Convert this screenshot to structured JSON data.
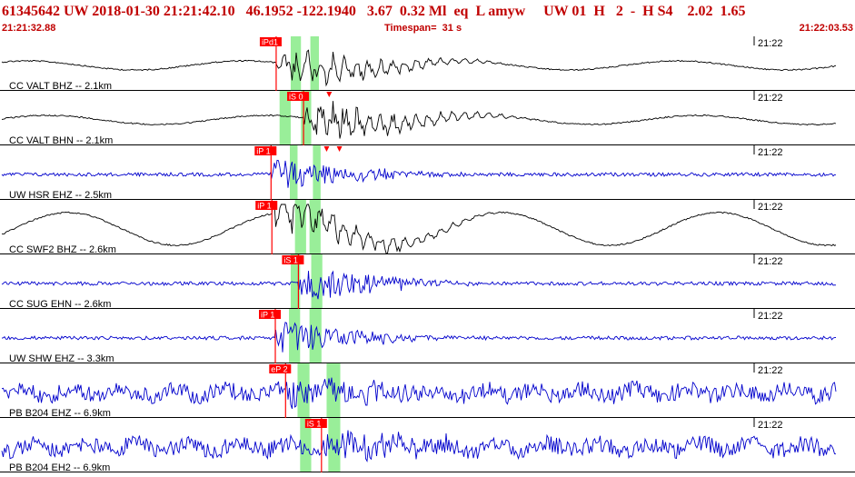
{
  "header": {
    "title": "61345642 UW 2018-01-30 21:21:42.10   46.1952 -122.1940   3.67  0.32 Ml  eq  L amyw     UW 01  H   2  -  H S4    2.02  1.65",
    "start_time": "21:21:32.88",
    "timespan": "Timespan=  31 s",
    "end_time": "21:22:03.53"
  },
  "colors": {
    "header_text": "#c00000",
    "pick": "#ff0000",
    "highlight": "#99ee99",
    "trace_black": "#000000",
    "trace_blue": "#0000cc"
  },
  "time_axis": {
    "minute_label": "21:22"
  },
  "traces": [
    {
      "label": "CC VALT BHZ -- 2.1km",
      "color": "#000000",
      "style": "long-period",
      "picks": [
        {
          "label": "iPd1",
          "time": 32.3
        }
      ],
      "arrows": [],
      "highlights": [
        [
          34.0,
          35.2
        ],
        [
          36.3,
          37.3
        ]
      ]
    },
    {
      "label": "CC VALT BHN -- 2.1km",
      "color": "#000000",
      "style": "long-period",
      "picks": [
        {
          "label": "iS 0",
          "time": 35.5
        }
      ],
      "arrows": [
        38.5
      ],
      "highlights": [
        [
          32.7,
          34.0
        ],
        [
          35.2,
          36.4
        ]
      ]
    },
    {
      "label": "UW HSR EHZ -- 2.5km",
      "color": "#0000cc",
      "style": "short-period",
      "picks": [
        {
          "label": "iP 1",
          "time": 31.7
        }
      ],
      "arrows": [
        38.2,
        39.7
      ],
      "highlights": [
        [
          33.9,
          34.8
        ],
        [
          36.6,
          37.5
        ]
      ]
    },
    {
      "label": "CC SWF2 BHZ -- 2.6km",
      "color": "#000000",
      "style": "long-period",
      "picks": [
        {
          "label": "iP 1",
          "time": 31.8
        }
      ],
      "arrows": [],
      "highlights": [
        [
          34.5,
          35.8
        ],
        [
          36.2,
          37.5
        ]
      ]
    },
    {
      "label": "CC SUG EHN -- 2.6km",
      "color": "#0000cc",
      "style": "short-period",
      "picks": [
        {
          "label": "iS 1",
          "time": 34.9
        }
      ],
      "arrows": [],
      "highlights": [
        [
          34.0,
          35.1
        ],
        [
          36.4,
          37.7
        ]
      ]
    },
    {
      "label": "UW SHW EHZ -- 3.3km",
      "color": "#0000cc",
      "style": "short-period",
      "picks": [
        {
          "label": "iP 1",
          "time": 32.2
        }
      ],
      "arrows": [],
      "highlights": [
        [
          33.8,
          35.1
        ],
        [
          36.2,
          37.6
        ]
      ]
    },
    {
      "label": "PB B204 EHZ -- 6.9km",
      "color": "#0000cc",
      "style": "noisy",
      "picks": [
        {
          "label": "eP 2",
          "time": 33.4
        }
      ],
      "arrows": [],
      "highlights": [
        [
          34.8,
          36.2
        ],
        [
          38.2,
          39.8
        ]
      ]
    },
    {
      "label": "PB B204 EH2 -- 6.9km",
      "color": "#0000cc",
      "style": "noisy",
      "picks": [
        {
          "label": "iS 1",
          "time": 37.6
        }
      ],
      "arrows": [],
      "highlights": [
        [
          35.1,
          36.4
        ],
        [
          38.4,
          39.8
        ]
      ]
    }
  ]
}
